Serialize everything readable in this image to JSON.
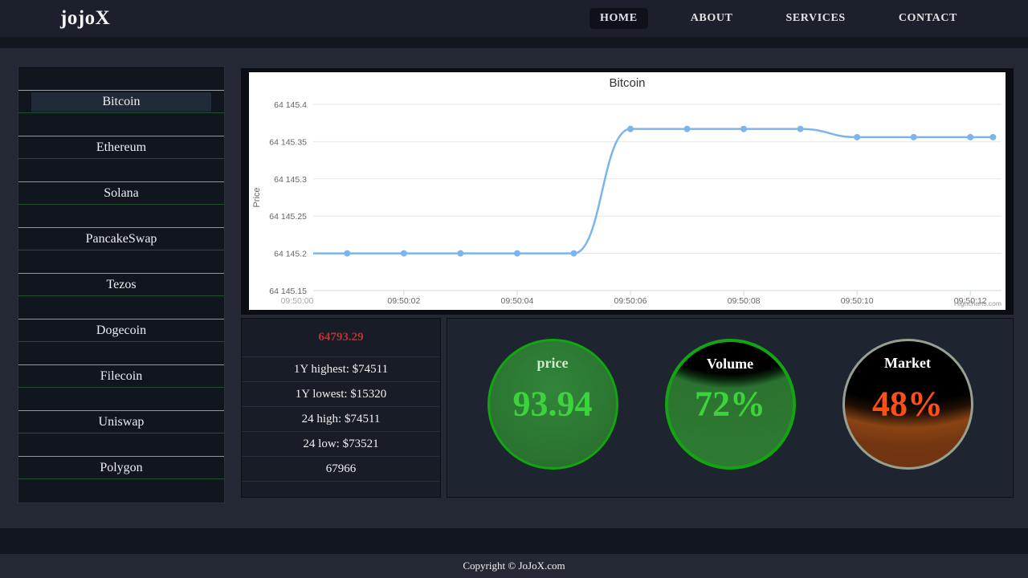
{
  "header": {
    "logo": "jojoX",
    "nav": [
      {
        "label": "HOME",
        "active": true
      },
      {
        "label": "ABOUT",
        "active": false
      },
      {
        "label": "SERVICES",
        "active": false
      },
      {
        "label": "CONTACT",
        "active": false
      }
    ]
  },
  "sidebar": {
    "coins": [
      "Bitcoin",
      "Ethereum",
      "Solana",
      "PancakeSwap",
      "Tezos",
      "Dogecoin",
      "Filecoin",
      "Uniswap",
      "Polygon"
    ],
    "selected": "Bitcoin"
  },
  "chart_data": {
    "type": "line",
    "title": "Bitcoin",
    "ylabel": "Price",
    "line_color": "#7cb5ec",
    "grid": true,
    "legend": "none",
    "credits": "Highcharts.com",
    "x_range": [
      0.4,
      12.55
    ],
    "y_range": [
      64145.15,
      64145.4
    ],
    "x_ticks": [
      {
        "t": 0,
        "label": "09:50:00",
        "muted": true
      },
      {
        "t": 2,
        "label": "09:50:02"
      },
      {
        "t": 4,
        "label": "09:50:04"
      },
      {
        "t": 6,
        "label": "09:50:06"
      },
      {
        "t": 8,
        "label": "09:50:08"
      },
      {
        "t": 10,
        "label": "09:50:10"
      },
      {
        "t": 12,
        "label": "09:50:12"
      }
    ],
    "y_ticks": [
      {
        "v": 64145.15,
        "label": "64 145.15"
      },
      {
        "v": 64145.2,
        "label": "64 145.2"
      },
      {
        "v": 64145.25,
        "label": "64 145.25"
      },
      {
        "v": 64145.3,
        "label": "64 145.3"
      },
      {
        "v": 64145.35,
        "label": "64 145.35"
      },
      {
        "v": 64145.4,
        "label": "64 145.4"
      }
    ],
    "points": [
      {
        "t": 0.4,
        "v": 64145.2,
        "marker": false
      },
      {
        "t": 1,
        "v": 64145.2
      },
      {
        "t": 2,
        "v": 64145.2
      },
      {
        "t": 3,
        "v": 64145.2
      },
      {
        "t": 4,
        "v": 64145.2
      },
      {
        "t": 5,
        "v": 64145.2
      },
      {
        "t": 6,
        "v": 64145.367
      },
      {
        "t": 7,
        "v": 64145.367
      },
      {
        "t": 8,
        "v": 64145.367
      },
      {
        "t": 9,
        "v": 64145.367
      },
      {
        "t": 10,
        "v": 64145.356
      },
      {
        "t": 11,
        "v": 64145.356
      },
      {
        "t": 12,
        "v": 64145.356
      },
      {
        "t": 12.4,
        "v": 64145.356
      }
    ]
  },
  "stats": {
    "rows": [
      {
        "text": "64793.29",
        "highlight": "red",
        "name": "stat-current-price"
      },
      {
        "text": "1Y highest: $74511",
        "name": "stat-1y-high"
      },
      {
        "text": "1Y lowest: $15320",
        "name": "stat-1y-low"
      },
      {
        "text": "24 high: $74511",
        "name": "stat-24h-high"
      },
      {
        "text": "24 low: $73521",
        "name": "stat-24h-low"
      },
      {
        "text": "67966",
        "name": "stat-volume"
      }
    ]
  },
  "gauges": [
    {
      "label": "price",
      "value": "93.94",
      "percent": 100,
      "theme": "green-full"
    },
    {
      "label": "Volume",
      "value": "72%",
      "percent": 72,
      "theme": "green"
    },
    {
      "label": "Market",
      "value": "48%",
      "percent": 48,
      "theme": "orange"
    }
  ],
  "footer": {
    "copyright": "Copyright © JoJoX.com"
  },
  "colors": {
    "accent_green": "#12a412",
    "value_green": "#3dd33d",
    "alert_red": "#c32f2f",
    "value_orange": "#ff4e16",
    "chart_line_blue": "#7cb5ec"
  }
}
